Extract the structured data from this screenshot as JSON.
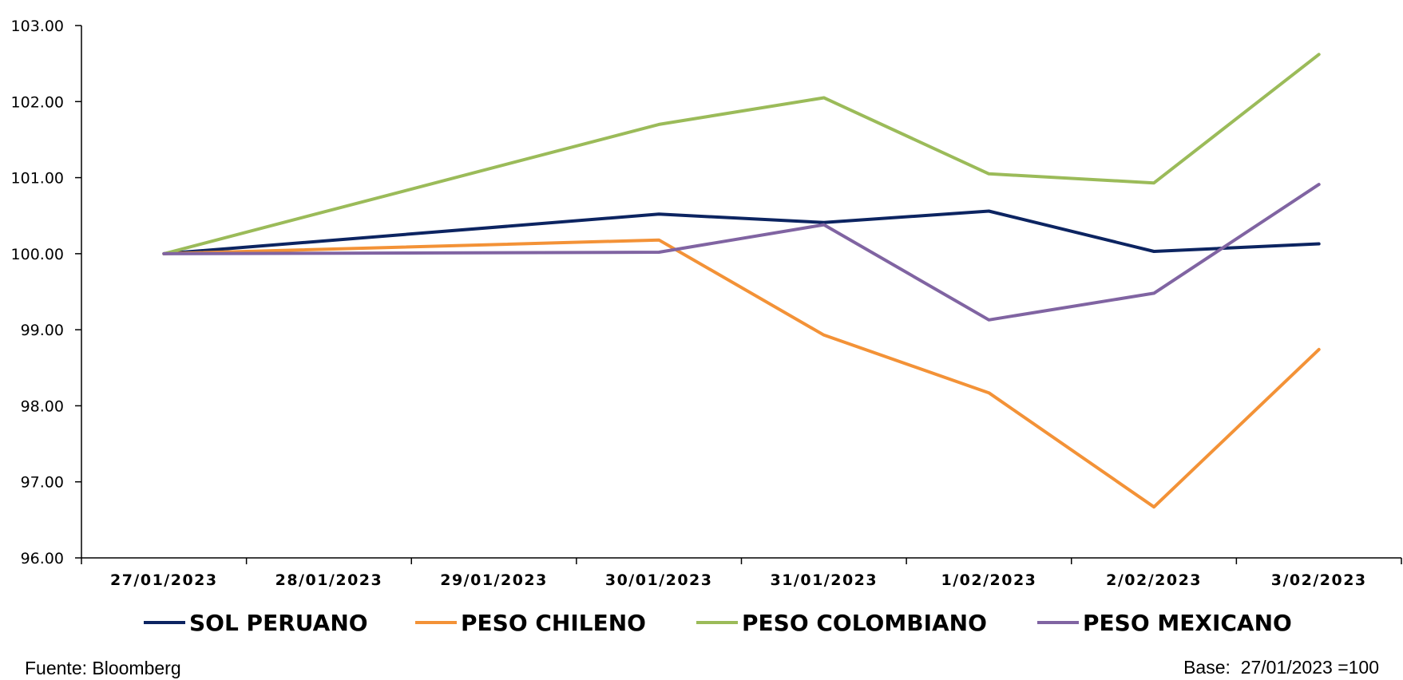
{
  "chart_data": {
    "type": "line",
    "categories": [
      "27/01/2023",
      "28/01/2023",
      "29/01/2023",
      "30/01/2023",
      "31/01/2023",
      "1/02/2023",
      "2/02/2023",
      "3/02/2023"
    ],
    "x_positions": [
      0,
      1,
      2,
      3,
      4,
      5,
      6,
      7
    ],
    "yticks": [
      "96.00",
      "97.00",
      "98.00",
      "99.00",
      "100.00",
      "101.00",
      "102.00",
      "103.00"
    ],
    "ylim": [
      96,
      103
    ],
    "grid": false,
    "legend_position": "bottom",
    "series": [
      {
        "name": "SOL PERUANO",
        "color": "#0c2461",
        "x": [
          0,
          3,
          4,
          5,
          6,
          7
        ],
        "values": [
          100.0,
          100.52,
          100.41,
          100.56,
          100.03,
          100.13
        ]
      },
      {
        "name": "PESO CHILENO",
        "color": "#f39237",
        "x": [
          0,
          3,
          4,
          5,
          6,
          7
        ],
        "values": [
          100.0,
          100.18,
          98.93,
          98.17,
          96.67,
          98.74
        ]
      },
      {
        "name": "PESO COLOMBIANO",
        "color": "#9bbb59",
        "x": [
          0,
          3,
          4,
          5,
          6,
          7
        ],
        "values": [
          100.0,
          101.7,
          102.05,
          101.05,
          100.93,
          102.62
        ]
      },
      {
        "name": "PESO MEXICANO",
        "color": "#8064a2",
        "x": [
          0,
          3,
          4,
          5,
          6,
          7
        ],
        "values": [
          100.0,
          100.02,
          100.38,
          99.13,
          99.48,
          100.91
        ]
      }
    ]
  },
  "source_note": "Fuente: Bloomberg",
  "base_note": "Base:  27/01/2023 =100"
}
